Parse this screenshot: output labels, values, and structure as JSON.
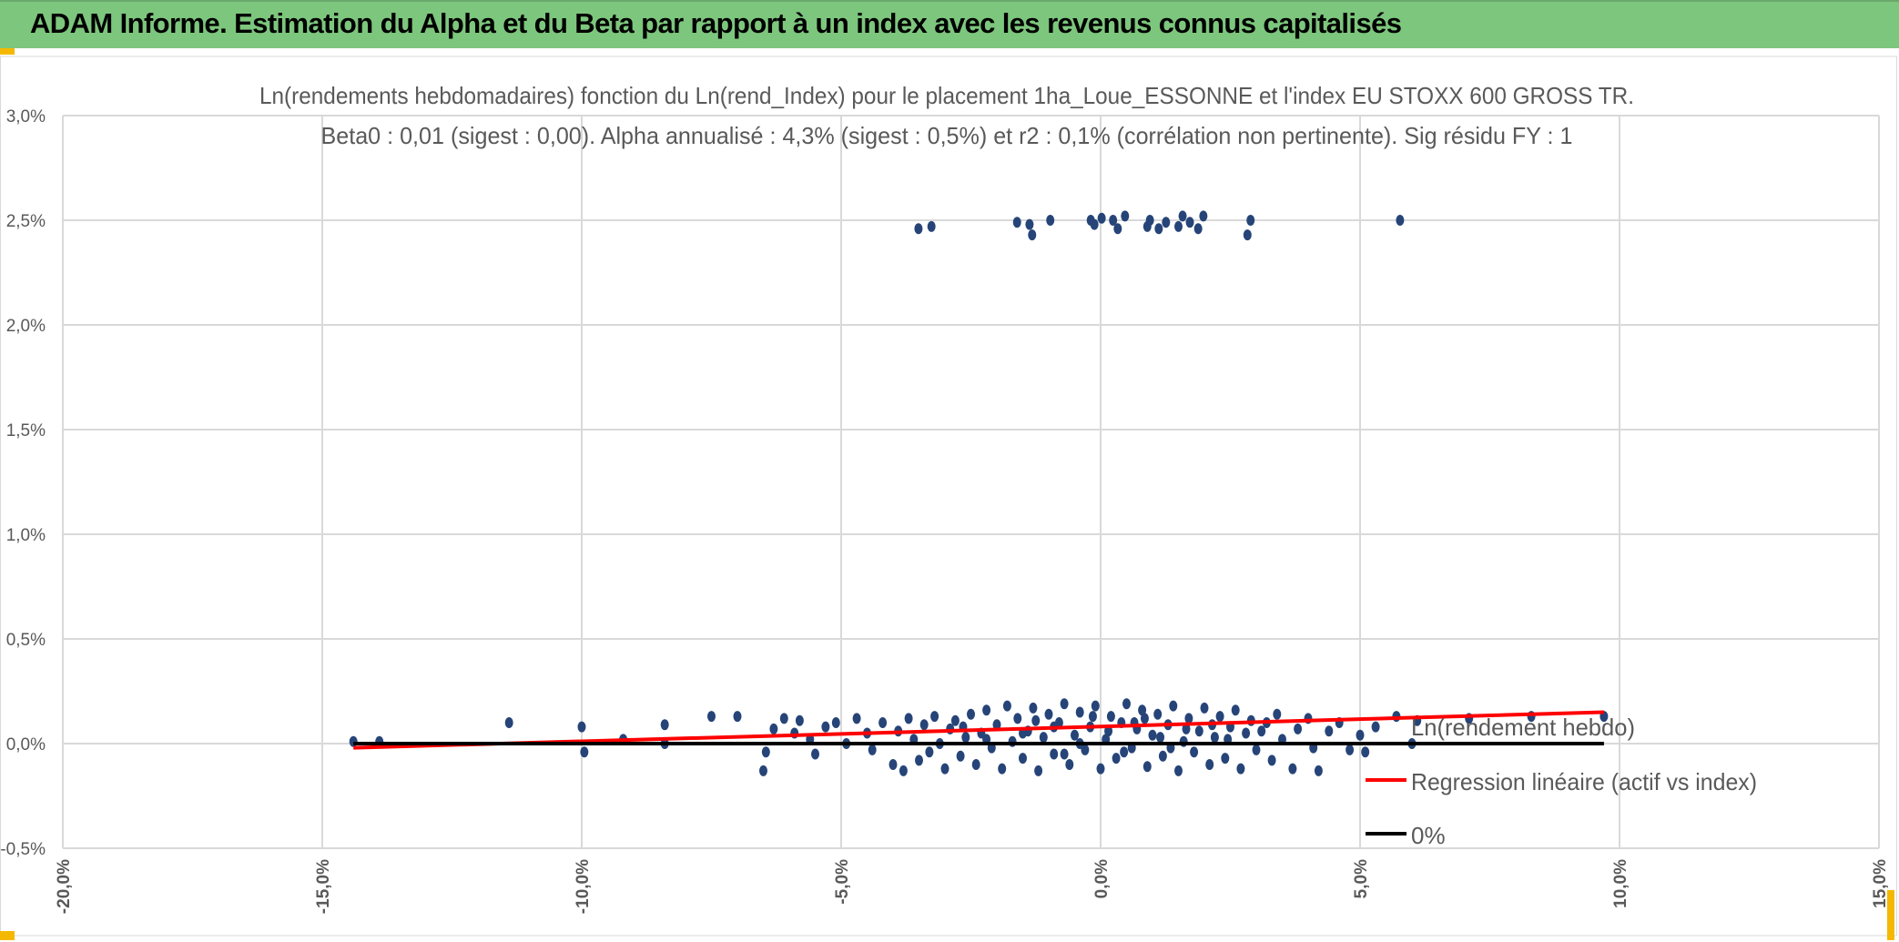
{
  "header": {
    "title": "ADAM Informe. Estimation du Alpha et du Beta par rapport à un index avec les revenus connus capitalisés"
  },
  "colors": {
    "header_bg": "#7dc67d",
    "points": "#264478",
    "regression": "#ff0000",
    "zero_line": "#000000",
    "grid": "#d9d9d9",
    "text": "#595959",
    "accent": "#f5b800"
  },
  "chart_data": {
    "type": "scatter",
    "title_lines": [
      "Ln(rendements hebdomadaires) fonction du Ln(rend_Index) pour le placement 1ha_Loue_ESSONNE et l'index EU STOXX 600 GROSS TR.",
      "Beta0 : 0,01 (sigest : 0,00). Alpha annualisé : 4,3% (sigest : 0,5%) et r2 : 0,1% (corrélation non pertinente). Sig résidu FY : 1"
    ],
    "xlim": [
      -20,
      15
    ],
    "ylim": [
      -0.5,
      3.0
    ],
    "x_ticks": [
      "-20,0%",
      "-15,0%",
      "-10,0%",
      "-5,0%",
      "0,0%",
      "5,0%",
      "10,0%",
      "15,0%"
    ],
    "y_ticks": [
      "-0,5%",
      "0,0%",
      "0,5%",
      "1,0%",
      "1,5%",
      "2,0%",
      "2,5%",
      "3,0%"
    ],
    "grid": true,
    "legend_placement": "right",
    "series": [
      {
        "name": "Ln(rendement hebdo)",
        "kind": "points",
        "points": [
          [
            -3.51,
            2.46
          ],
          [
            -3.26,
            2.47
          ],
          [
            -1.61,
            2.49
          ],
          [
            -1.37,
            2.48
          ],
          [
            -1.32,
            2.43
          ],
          [
            -0.97,
            2.5
          ],
          [
            -0.19,
            2.5
          ],
          [
            -0.12,
            2.48
          ],
          [
            0.02,
            2.51
          ],
          [
            0.24,
            2.5
          ],
          [
            0.33,
            2.46
          ],
          [
            0.47,
            2.52
          ],
          [
            0.9,
            2.47
          ],
          [
            0.95,
            2.5
          ],
          [
            1.12,
            2.46
          ],
          [
            1.26,
            2.49
          ],
          [
            1.5,
            2.47
          ],
          [
            1.58,
            2.52
          ],
          [
            1.72,
            2.49
          ],
          [
            1.88,
            2.46
          ],
          [
            1.98,
            2.52
          ],
          [
            2.83,
            2.43
          ],
          [
            2.89,
            2.5
          ],
          [
            5.77,
            2.5
          ],
          [
            -14.4,
            0.01
          ],
          [
            -13.9,
            0.01
          ],
          [
            -11.4,
            0.1
          ],
          [
            -10.0,
            0.08
          ],
          [
            -9.95,
            -0.04
          ],
          [
            -9.2,
            0.02
          ],
          [
            -8.4,
            0.09
          ],
          [
            -8.4,
            0.0
          ],
          [
            -7.5,
            0.13
          ],
          [
            -7.0,
            0.13
          ],
          [
            -6.5,
            -0.13
          ],
          [
            -6.45,
            -0.04
          ],
          [
            -6.3,
            0.07
          ],
          [
            -6.1,
            0.12
          ],
          [
            -5.9,
            0.05
          ],
          [
            -5.8,
            0.11
          ],
          [
            -5.6,
            0.02
          ],
          [
            -5.5,
            -0.05
          ],
          [
            -5.3,
            0.08
          ],
          [
            -5.1,
            0.1
          ],
          [
            -4.9,
            0.0
          ],
          [
            -4.7,
            0.12
          ],
          [
            -4.5,
            0.05
          ],
          [
            -4.4,
            -0.03
          ],
          [
            -4.2,
            0.1
          ],
          [
            -4.0,
            -0.1
          ],
          [
            -3.9,
            0.06
          ],
          [
            -3.8,
            -0.13
          ],
          [
            -3.7,
            0.12
          ],
          [
            -3.6,
            0.02
          ],
          [
            -3.5,
            -0.08
          ],
          [
            -3.4,
            0.09
          ],
          [
            -3.3,
            -0.04
          ],
          [
            -3.2,
            0.13
          ],
          [
            -3.1,
            0.0
          ],
          [
            -3.0,
            -0.12
          ],
          [
            -2.9,
            0.07
          ],
          [
            -2.8,
            0.11
          ],
          [
            -2.7,
            -0.06
          ],
          [
            -2.6,
            0.03
          ],
          [
            -2.5,
            0.14
          ],
          [
            -2.4,
            -0.1
          ],
          [
            -2.3,
            0.05
          ],
          [
            -2.2,
            0.16
          ],
          [
            -2.1,
            -0.02
          ],
          [
            -2.0,
            0.09
          ],
          [
            -1.9,
            -0.12
          ],
          [
            -1.8,
            0.18
          ],
          [
            -1.7,
            0.01
          ],
          [
            -1.6,
            0.12
          ],
          [
            -1.5,
            -0.07
          ],
          [
            -1.4,
            0.06
          ],
          [
            -1.3,
            0.17
          ],
          [
            -1.2,
            -0.13
          ],
          [
            -1.1,
            0.03
          ],
          [
            -1.0,
            0.14
          ],
          [
            -0.9,
            -0.05
          ],
          [
            -0.8,
            0.1
          ],
          [
            -0.7,
            0.19
          ],
          [
            -0.6,
            -0.1
          ],
          [
            -0.5,
            0.04
          ],
          [
            -0.4,
            0.15
          ],
          [
            -0.3,
            -0.03
          ],
          [
            -0.2,
            0.08
          ],
          [
            -0.1,
            0.18
          ],
          [
            0.0,
            -0.12
          ],
          [
            0.1,
            0.02
          ],
          [
            0.2,
            0.13
          ],
          [
            0.3,
            -0.07
          ],
          [
            0.4,
            0.1
          ],
          [
            0.5,
            0.19
          ],
          [
            0.6,
            -0.02
          ],
          [
            0.7,
            0.07
          ],
          [
            0.8,
            0.16
          ],
          [
            0.9,
            -0.11
          ],
          [
            1.0,
            0.04
          ],
          [
            1.1,
            0.14
          ],
          [
            1.2,
            -0.06
          ],
          [
            1.3,
            0.09
          ],
          [
            1.4,
            0.18
          ],
          [
            1.5,
            -0.13
          ],
          [
            1.6,
            0.01
          ],
          [
            1.7,
            0.12
          ],
          [
            1.8,
            -0.04
          ],
          [
            1.9,
            0.06
          ],
          [
            2.0,
            0.17
          ],
          [
            2.1,
            -0.1
          ],
          [
            2.2,
            0.03
          ],
          [
            2.3,
            0.13
          ],
          [
            2.4,
            -0.07
          ],
          [
            2.5,
            0.08
          ],
          [
            2.6,
            0.16
          ],
          [
            2.7,
            -0.12
          ],
          [
            2.8,
            0.05
          ],
          [
            2.9,
            0.11
          ],
          [
            3.0,
            -0.03
          ],
          [
            3.2,
            0.1
          ],
          [
            3.3,
            -0.08
          ],
          [
            3.4,
            0.14
          ],
          [
            3.5,
            0.02
          ],
          [
            3.7,
            -0.12
          ],
          [
            3.8,
            0.07
          ],
          [
            4.0,
            0.12
          ],
          [
            4.1,
            -0.02
          ],
          [
            4.2,
            -0.13
          ],
          [
            4.4,
            0.06
          ],
          [
            4.6,
            0.1
          ],
          [
            4.8,
            -0.03
          ],
          [
            5.0,
            0.04
          ],
          [
            5.1,
            -0.04
          ],
          [
            5.3,
            0.08
          ],
          [
            5.7,
            0.13
          ],
          [
            6.0,
            0.0
          ],
          [
            6.1,
            0.11
          ],
          [
            7.1,
            0.12
          ],
          [
            8.3,
            0.13
          ],
          [
            9.7,
            0.13
          ],
          [
            -1.5,
            0.05
          ],
          [
            -0.9,
            0.08
          ],
          [
            -0.4,
            0.0
          ],
          [
            0.15,
            0.06
          ],
          [
            0.65,
            0.1
          ],
          [
            1.15,
            0.03
          ],
          [
            1.65,
            0.07
          ],
          [
            -2.2,
            0.02
          ],
          [
            -0.7,
            -0.05
          ],
          [
            0.45,
            -0.04
          ],
          [
            1.35,
            -0.02
          ],
          [
            2.15,
            0.09
          ],
          [
            -1.25,
            0.11
          ],
          [
            0.85,
            0.12
          ],
          [
            -0.15,
            0.13
          ],
          [
            2.45,
            0.02
          ],
          [
            -2.65,
            0.08
          ],
          [
            3.1,
            0.06
          ]
        ]
      },
      {
        "name": "Regression linéaire (actif vs index)",
        "kind": "line",
        "points": [
          [
            -14.4,
            -0.02
          ],
          [
            9.7,
            0.15
          ]
        ]
      },
      {
        "name": "0%",
        "kind": "line",
        "points": [
          [
            -14.4,
            0.0
          ],
          [
            9.7,
            0.0
          ]
        ]
      }
    ]
  }
}
